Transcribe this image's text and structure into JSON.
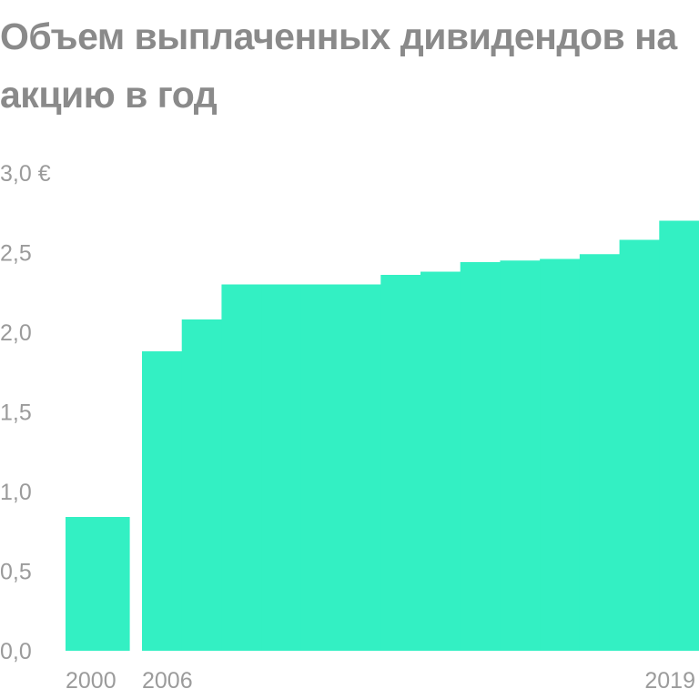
{
  "chart_data": {
    "type": "bar",
    "title": "Объем выплаченных дивидендов на акцию в год",
    "xlabel": "",
    "ylabel": "",
    "ylim": [
      0,
      3.0
    ],
    "yticks": [
      "0,0",
      "0,5",
      "1,0",
      "1,5",
      "2,0",
      "2,5",
      "3,0 €"
    ],
    "xtick_labels": [
      "2000",
      "2006",
      "2019"
    ],
    "grid": false,
    "legend": "none",
    "bar_color": "#33f0c3",
    "groups": [
      {
        "from": 2000,
        "to": 2000,
        "categories": [
          "2000"
        ],
        "values": [
          0.84
        ]
      },
      {
        "from": 2006,
        "to": 2019,
        "categories": [
          "2006",
          "2007",
          "2008",
          "2009",
          "2010",
          "2011",
          "2012",
          "2013",
          "2014",
          "2015",
          "2016",
          "2017",
          "2018",
          "2019"
        ],
        "values": [
          1.88,
          2.08,
          2.3,
          2.3,
          2.3,
          2.3,
          2.36,
          2.38,
          2.44,
          2.45,
          2.46,
          2.49,
          2.58,
          2.7
        ]
      }
    ]
  }
}
